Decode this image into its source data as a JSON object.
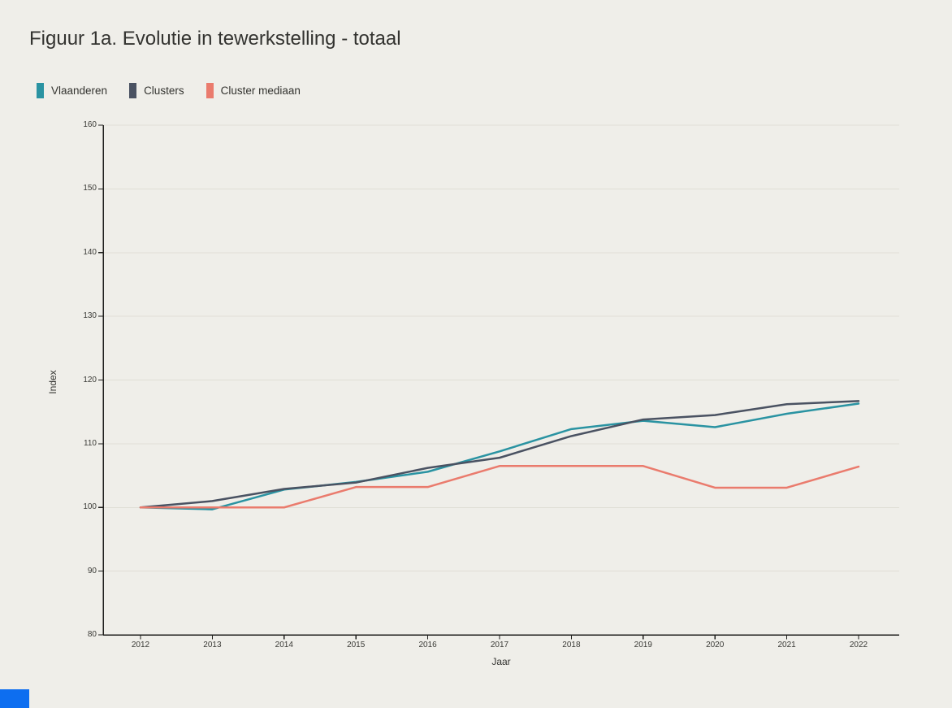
{
  "title": "Figuur 1a. Evolutie in tewerkstelling - totaal",
  "colors": {
    "background": "#efeee9",
    "axis": "#1f1f1d",
    "grid": "#e0ded6",
    "text": "#333330",
    "footer_accent": "#0d6ef0"
  },
  "legend": [
    {
      "label": "Vlaanderen",
      "color": "#2a93a2"
    },
    {
      "label": "Clusters",
      "color": "#4a5262"
    },
    {
      "label": "Cluster mediaan",
      "color": "#ea7b6d"
    }
  ],
  "chart_data": {
    "type": "line",
    "title": "Figuur 1a. Evolutie in tewerkstelling - totaal",
    "xlabel": "Jaar",
    "ylabel": "Index",
    "ylim": [
      80,
      160
    ],
    "y_ticks": [
      80,
      90,
      100,
      110,
      120,
      130,
      140,
      150,
      160
    ],
    "x": [
      2012,
      2013,
      2014,
      2015,
      2016,
      2017,
      2018,
      2019,
      2020,
      2021,
      2022
    ],
    "grid": true,
    "legend_position": "top-left",
    "series": [
      {
        "name": "Vlaanderen",
        "color": "#2a93a2",
        "values": [
          100,
          99.7,
          102.8,
          104.0,
          105.6,
          108.8,
          112.3,
          113.6,
          112.6,
          114.7,
          116.3
        ]
      },
      {
        "name": "Clusters",
        "color": "#4a5262",
        "values": [
          100,
          101.0,
          102.9,
          103.9,
          106.2,
          107.8,
          111.2,
          113.8,
          114.5,
          116.2,
          116.7
        ]
      },
      {
        "name": "Cluster mediaan",
        "color": "#ea7b6d",
        "values": [
          100,
          100,
          100,
          103.2,
          103.2,
          106.5,
          106.5,
          106.5,
          103.1,
          103.1,
          106.4
        ]
      }
    ]
  }
}
